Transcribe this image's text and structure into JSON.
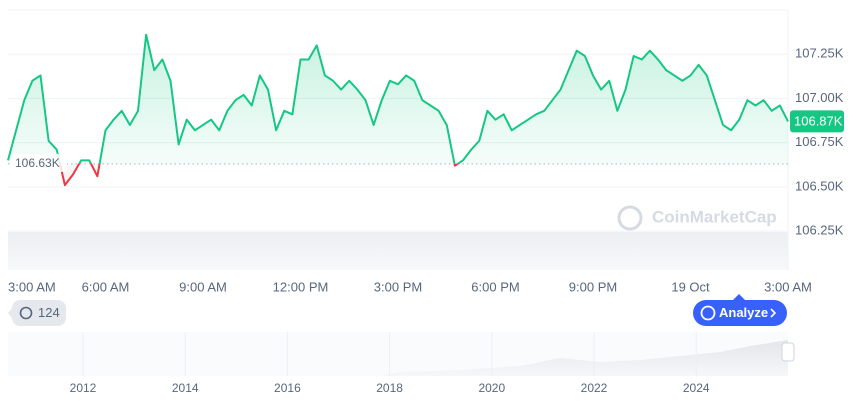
{
  "chart_data": {
    "type": "line",
    "color": "#16c784",
    "below_color": "#ea3943",
    "grid": true,
    "ylim": [
      106.03,
      107.5
    ],
    "yticks": [
      {
        "value": 106.25,
        "label": "106.25K"
      },
      {
        "value": 106.5,
        "label": "106.50K"
      },
      {
        "value": 106.75,
        "label": "106.75K"
      },
      {
        "value": 107.0,
        "label": "107.00K"
      },
      {
        "value": 107.25,
        "label": "107.25K"
      }
    ],
    "baseline": 106.63,
    "baseline_label": "106.63K",
    "last_value_label": "106.87K",
    "categories": [
      "3:00 AM",
      null,
      null,
      null,
      null,
      null,
      null,
      null,
      null,
      null,
      null,
      null,
      "6:00 AM",
      null,
      null,
      null,
      null,
      null,
      null,
      null,
      null,
      null,
      null,
      null,
      "9:00 AM",
      null,
      null,
      null,
      null,
      null,
      null,
      null,
      null,
      null,
      null,
      null,
      "12:00 PM",
      null,
      null,
      null,
      null,
      null,
      null,
      null,
      null,
      null,
      null,
      null,
      "3:00 PM",
      null,
      null,
      null,
      null,
      null,
      null,
      null,
      null,
      null,
      null,
      null,
      "6:00 PM",
      null,
      null,
      null,
      null,
      null,
      null,
      null,
      null,
      null,
      null,
      null,
      "9:00 PM",
      null,
      null,
      null,
      null,
      null,
      null,
      null,
      null,
      null,
      null,
      null,
      "19 Oct",
      null,
      null,
      null,
      null,
      null,
      null,
      null,
      null,
      null,
      null,
      null,
      "3:00 AM"
    ],
    "values": [
      106.65,
      106.82,
      106.99,
      107.1,
      107.13,
      106.76,
      106.71,
      106.51,
      106.57,
      106.65,
      106.65,
      106.56,
      106.82,
      106.88,
      106.93,
      106.85,
      106.93,
      107.36,
      107.16,
      107.22,
      107.1,
      106.74,
      106.88,
      106.82,
      106.85,
      106.88,
      106.82,
      106.93,
      106.99,
      107.02,
      106.96,
      107.13,
      107.05,
      106.82,
      106.93,
      106.91,
      107.22,
      107.22,
      107.3,
      107.13,
      107.1,
      107.05,
      107.1,
      107.05,
      106.99,
      106.85,
      106.99,
      107.1,
      107.08,
      107.13,
      107.1,
      106.99,
      106.96,
      106.93,
      106.85,
      106.62,
      106.65,
      106.71,
      106.76,
      106.93,
      106.88,
      106.91,
      106.82,
      106.85,
      106.88,
      106.91,
      106.93,
      106.99,
      107.05,
      107.16,
      107.27,
      107.24,
      107.13,
      107.05,
      107.1,
      106.93,
      107.05,
      107.24,
      107.22,
      107.27,
      107.22,
      107.16,
      107.13,
      107.1,
      107.13,
      107.19,
      107.13,
      106.99,
      106.85,
      106.82,
      106.88,
      106.99,
      106.96,
      106.99,
      106.93,
      106.96,
      106.87
    ],
    "watermark": "CoinMarketCap",
    "history_button": "124",
    "analyze_button": "Analyze",
    "navigator_years": [
      "2012",
      "2014",
      "2016",
      "2018",
      "2020",
      "2022",
      "2024"
    ]
  }
}
